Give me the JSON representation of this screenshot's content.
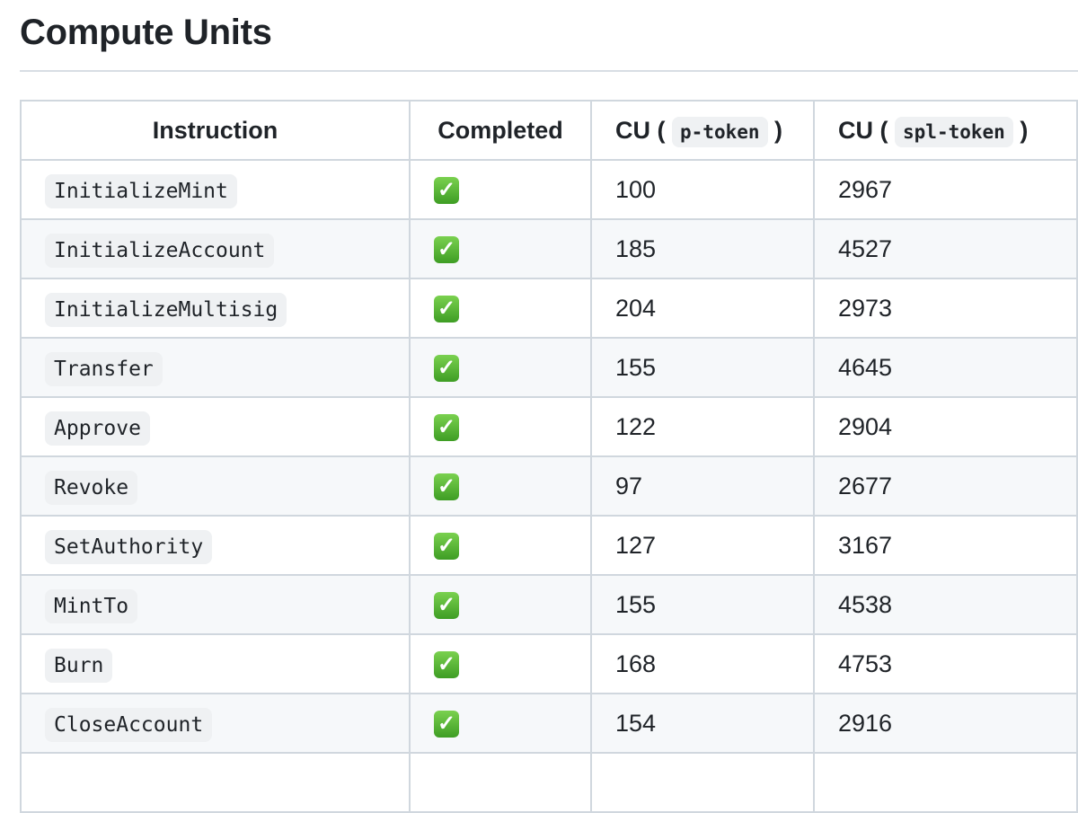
{
  "title": "Compute Units",
  "table": {
    "headers": {
      "instruction": "Instruction",
      "completed": "Completed",
      "cu_p_prefix": "CU (",
      "cu_p_code": "p-token",
      "cu_p_suffix": ")",
      "cu_spl_prefix": "CU (",
      "cu_spl_code": "spl-token",
      "cu_spl_suffix": ")"
    },
    "rows": [
      {
        "instruction": "InitializeMint",
        "completed": "✓",
        "p": "100",
        "spl": "2967"
      },
      {
        "instruction": "InitializeAccount",
        "completed": "✓",
        "p": "185",
        "spl": "4527"
      },
      {
        "instruction": "InitializeMultisig",
        "completed": "✓",
        "p": "204",
        "spl": "2973"
      },
      {
        "instruction": "Transfer",
        "completed": "✓",
        "p": "155",
        "spl": "4645"
      },
      {
        "instruction": "Approve",
        "completed": "✓",
        "p": "122",
        "spl": "2904"
      },
      {
        "instruction": "Revoke",
        "completed": "✓",
        "p": "97",
        "spl": "2677"
      },
      {
        "instruction": "SetAuthority",
        "completed": "✓",
        "p": "127",
        "spl": "3167"
      },
      {
        "instruction": "MintTo",
        "completed": "✓",
        "p": "155",
        "spl": "4538"
      },
      {
        "instruction": "Burn",
        "completed": "✓",
        "p": "168",
        "spl": "4753"
      },
      {
        "instruction": "CloseAccount",
        "completed": "✓",
        "p": "154",
        "spl": "2916"
      }
    ]
  },
  "icons": {
    "completed": "white-check-mark-emoji"
  },
  "colors": {
    "check_green": "#4cb133",
    "border": "#d0d7de",
    "stripe": "#f6f8fa"
  }
}
